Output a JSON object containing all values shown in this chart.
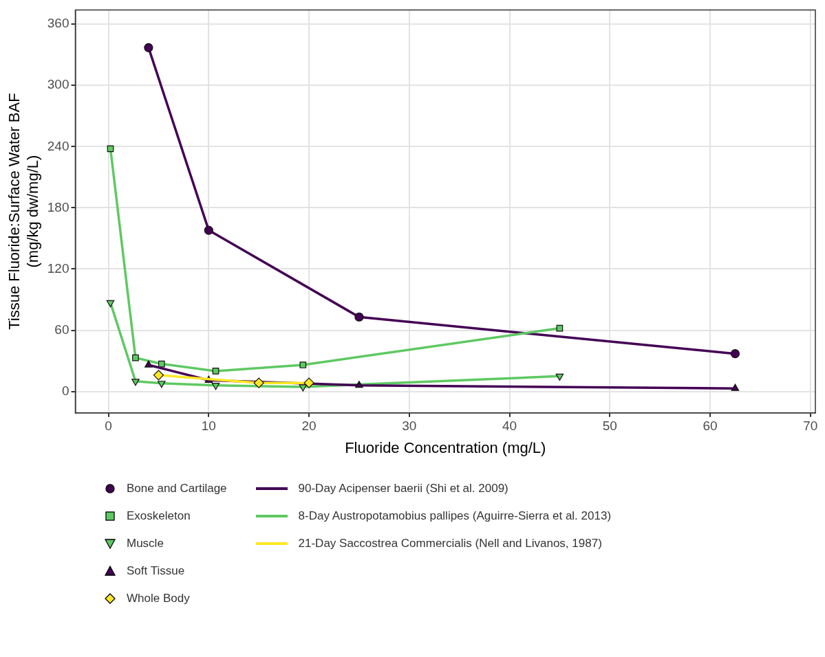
{
  "chart_data": {
    "type": "line",
    "xlabel": "Fluoride Concentration (mg/L)",
    "ylabel": "Tissue Fluoride:Surface Water BAF\n(mg/kg dw/mg/L)",
    "xlim": [
      -3.3,
      70.5
    ],
    "xticks": [
      0,
      10,
      20,
      30,
      40,
      50,
      60,
      70
    ],
    "ylim": [
      -21,
      374
    ],
    "yticks": [
      0,
      60,
      120,
      180,
      240,
      300,
      360
    ],
    "grid": true,
    "legend": "bottom",
    "series": [
      {
        "name": "Bone and Cartilage",
        "marker": "circle",
        "color": "#440154",
        "x": [
          4,
          10,
          25,
          62.5
        ],
        "values": [
          337,
          158,
          73,
          37
        ]
      },
      {
        "name": "Exoskeleton",
        "marker": "square",
        "color": "#5ec962",
        "x": [
          0.2,
          2.7,
          5.3,
          10.7,
          19.4,
          45
        ],
        "values": [
          238,
          33,
          27,
          20,
          26,
          62
        ]
      },
      {
        "name": "Muscle",
        "marker": "triangle-down",
        "color": "#5ec962",
        "x": [
          0.2,
          2.7,
          5.3,
          10.7,
          19.4,
          45
        ],
        "values": [
          87,
          10,
          8,
          6,
          4.5,
          15
        ]
      },
      {
        "name": "Soft Tissue",
        "marker": "triangle",
        "color": "#440154",
        "x": [
          4,
          10,
          25,
          62.5
        ],
        "values": [
          26,
          11,
          6,
          3
        ]
      },
      {
        "name": "Whole Body",
        "marker": "diamond",
        "color": "#fde725",
        "x": [
          5,
          15,
          20
        ],
        "values": [
          16,
          8.4,
          8.4
        ]
      },
      {
        "name": "90-Day Acipenser baerii (Shi et al. 2009)",
        "marker": "none",
        "color": "#440154"
      },
      {
        "name": "8-Day Austropotamobius pallipes (Aguirre-Sierra et al. 2013)",
        "marker": "none",
        "color": "#5ec962"
      },
      {
        "name": "21-Day Saccostrea Commercialis (Nell and Livanos, 1987)",
        "marker": "none",
        "color": "#fde725"
      }
    ]
  }
}
